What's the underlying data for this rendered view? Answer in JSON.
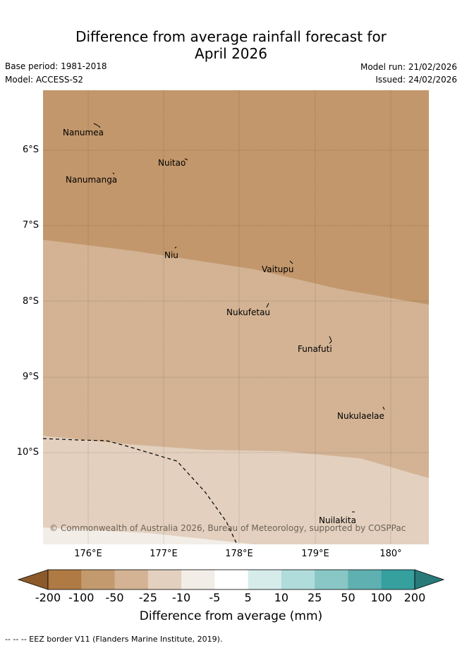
{
  "title_line1": "Difference from average rainfall forecast for",
  "title_line2": "April 2026",
  "base_period": "Base period: 1981-2018",
  "model": "Model: ACCESS-S2",
  "model_run": "Model run: 21/02/2026",
  "issued": "Issued: 24/02/2026",
  "lat_labels": [
    "6°S",
    "7°S",
    "8°S",
    "9°S",
    "10°S"
  ],
  "lon_labels": [
    "176°E",
    "177°E",
    "178°E",
    "179°E",
    "180°"
  ],
  "islands": [
    "Nanumea",
    "Nuitao",
    "Nanumanga",
    "Niu",
    "Vaitupu",
    "Nukufetau",
    "Funafuti",
    "Nukulaelae",
    "Nuilakita"
  ],
  "copyright": "© Commonwealth of Australia 2026, Bureau of Meteorology, supported by COSPPac",
  "colorbar": {
    "labels": [
      "-200",
      "-100",
      "-50",
      "-25",
      "-10",
      "-5",
      "5",
      "10",
      "25",
      "50",
      "100",
      "200"
    ],
    "colors": [
      "#8c5a2a",
      "#b07a44",
      "#c39a6e",
      "#d3b394",
      "#e3d0be",
      "#f2ede7",
      "#ffffff",
      "#d6eceb",
      "#b0dcdb",
      "#88c7c6",
      "#5fb0b0",
      "#36a09f",
      "#2a7a7a"
    ],
    "title": "Difference from average (mm)"
  },
  "map_colors": {
    "dry_strong": "#c2976b",
    "dry_mid": "#d3b394",
    "dry_light": "#e3d0be",
    "near_normal": "#f2ede7"
  },
  "footnote": "-- -- -- EEZ border V11 (Flanders Marine Institute, 2019)."
}
